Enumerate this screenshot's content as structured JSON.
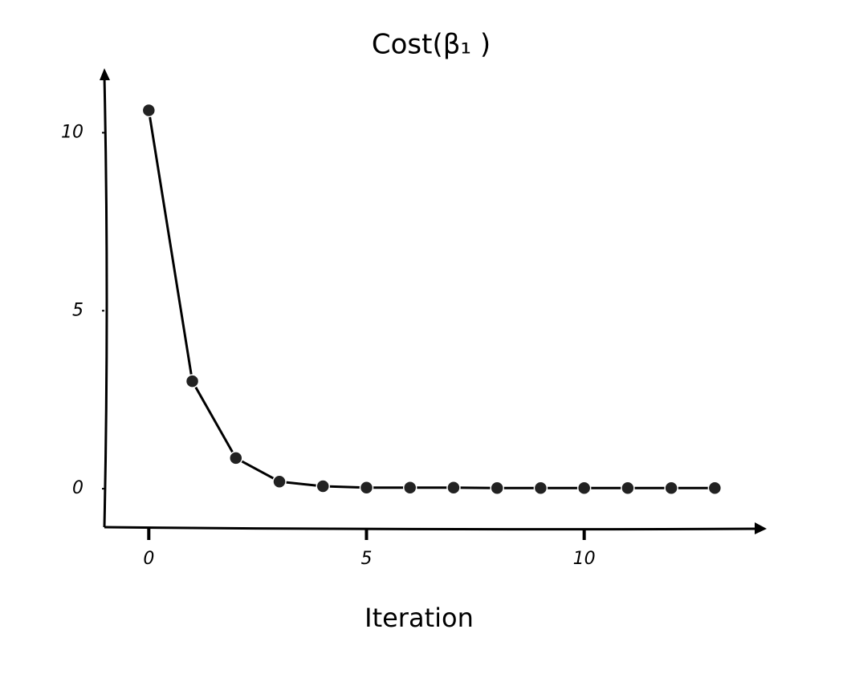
{
  "chart_data": {
    "type": "line",
    "title": "Cost(β₁ )",
    "x_label": "Iteration",
    "x": [
      0,
      1,
      2,
      3,
      4,
      5,
      6,
      7,
      8,
      9,
      10,
      11,
      12,
      13
    ],
    "series": [
      {
        "color": "#000000",
        "values": [
          10.63,
          3.02,
          0.86,
          0.2,
          0.07,
          0.03,
          0.03,
          0.03,
          0.02,
          0.02,
          0.02,
          0.02,
          0.02,
          0.02
        ]
      }
    ],
    "xlim": [
      -1.02,
      14.1
    ],
    "ylim": [
      -1.08,
      11.7
    ],
    "xticks": [
      0,
      5,
      10
    ],
    "yticks": [
      0,
      5,
      10
    ],
    "grid": false
  }
}
